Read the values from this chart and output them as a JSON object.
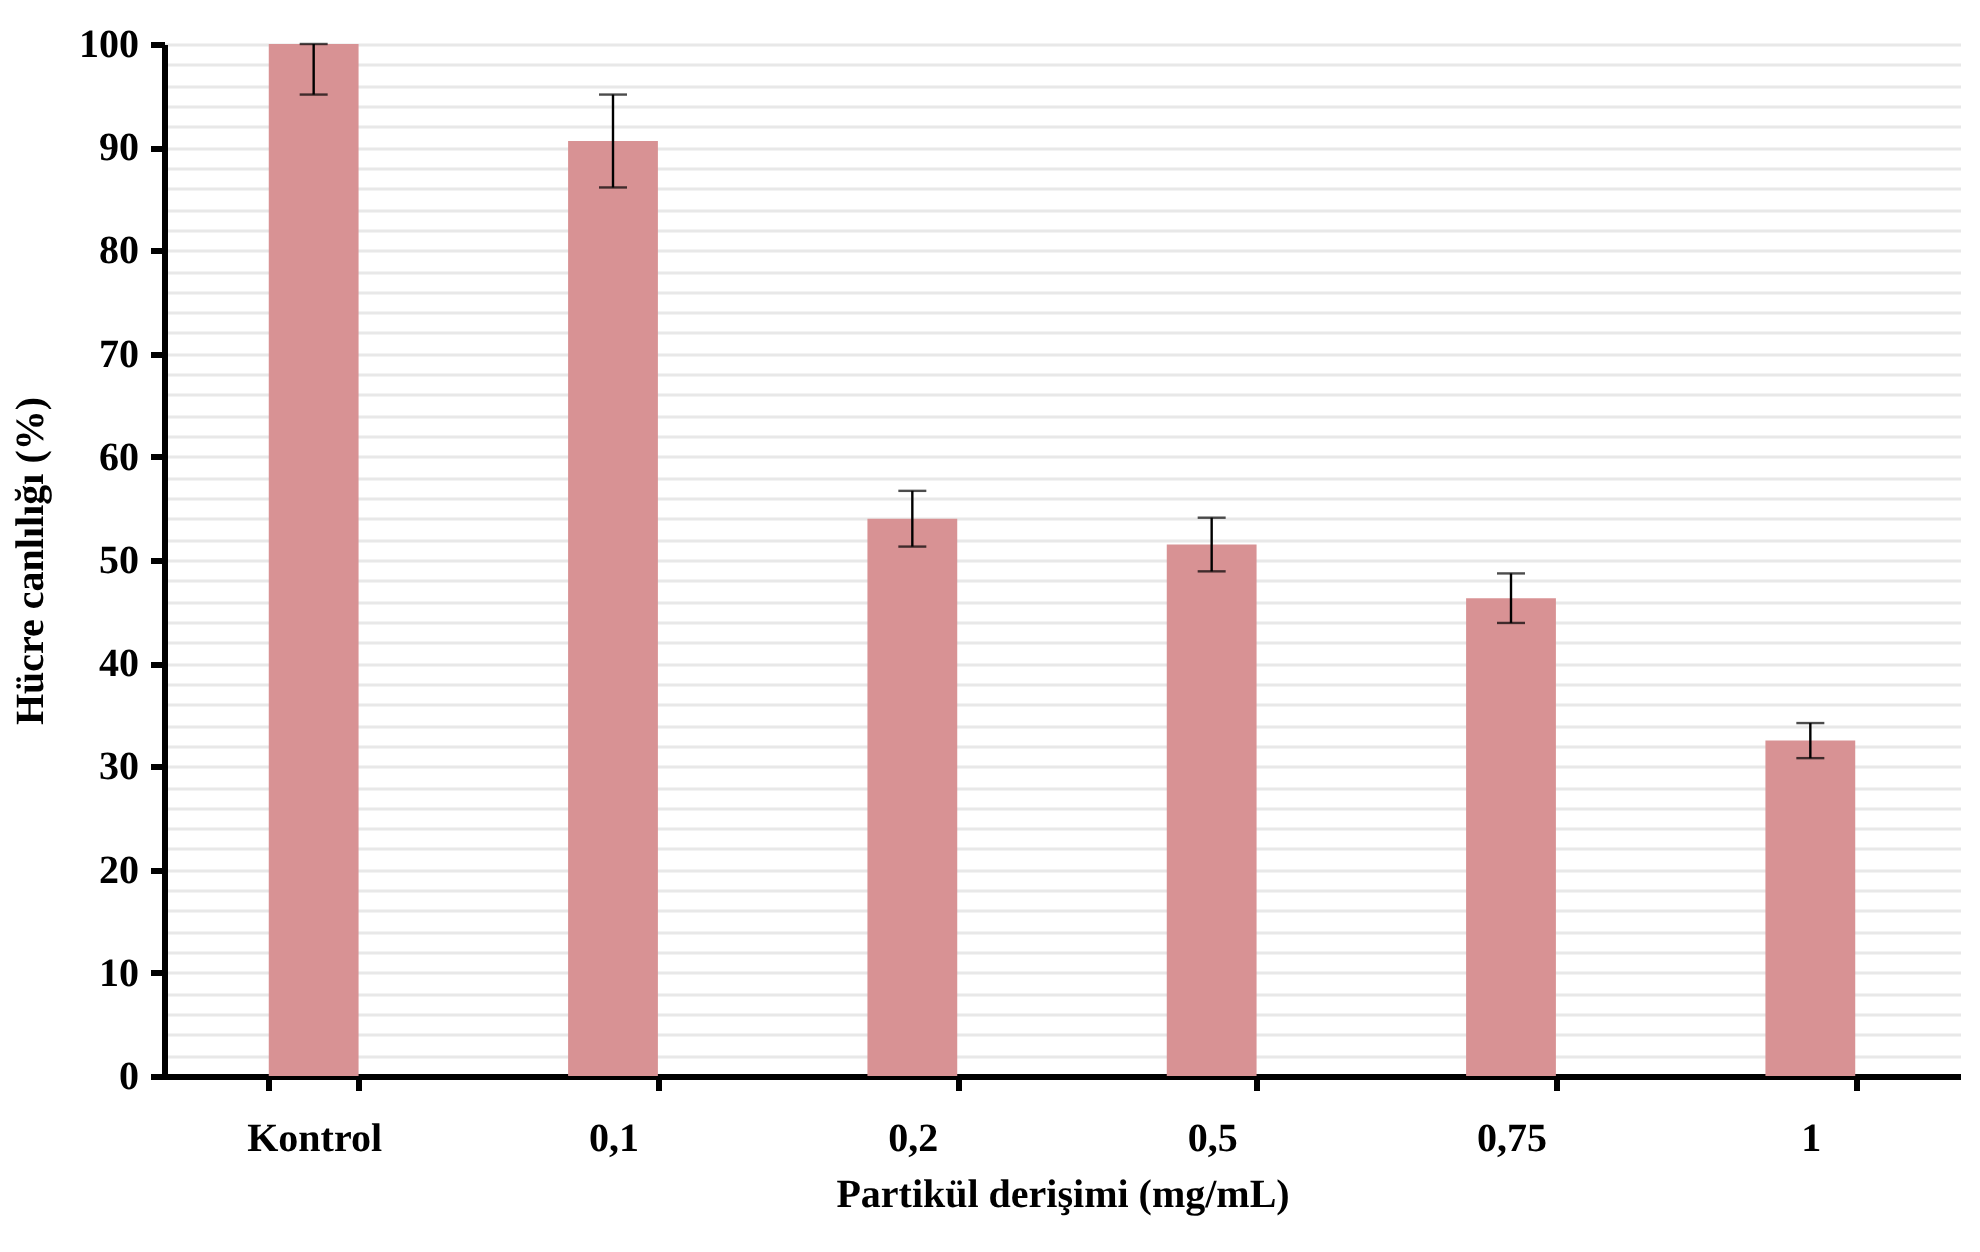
{
  "chart_data": {
    "type": "bar",
    "xlabel": "Partikül derişimi (mg/mL)",
    "ylabel": "Hücre canlılığı (%)",
    "categories": [
      "Kontrol",
      "0,1",
      "0,2",
      "0,5",
      "0,75",
      "1"
    ],
    "values": [
      100,
      90.6,
      54.0,
      51.5,
      46.3,
      32.5
    ],
    "errors": [
      [
        95.1,
        100
      ],
      4.5,
      2.7,
      2.6,
      2.4,
      1.7
    ],
    "color": "#d89294",
    "ylim": [
      0,
      100
    ],
    "yticks": [
      0,
      {
        "value": 2,
        "label": null
      },
      {
        "value": 4,
        "label": null
      },
      {
        "value": 6,
        "label": null
      },
      {
        "value": 8,
        "label": null
      },
      10,
      {
        "value": 12,
        "label": null
      },
      {
        "value": 14,
        "label": null
      },
      {
        "value": 16,
        "label": null
      },
      {
        "value": 18,
        "label": null
      },
      20,
      {
        "value": 22,
        "label": null
      },
      {
        "value": 24,
        "label": null
      },
      {
        "value": 26,
        "label": null
      },
      {
        "value": 28,
        "label": null
      },
      30,
      {
        "value": 32,
        "label": null
      },
      {
        "value": 34,
        "label": null
      },
      {
        "value": 36,
        "label": null
      },
      {
        "value": 38,
        "label": null
      },
      40,
      {
        "value": 42,
        "label": null
      },
      {
        "value": 44,
        "label": null
      },
      {
        "value": 46,
        "label": null
      },
      {
        "value": 48,
        "label": null
      },
      50,
      {
        "value": 52,
        "label": null
      },
      {
        "value": 54,
        "label": null
      },
      {
        "value": 56,
        "label": null
      },
      {
        "value": 58,
        "label": null
      },
      60,
      {
        "value": 62,
        "label": null
      },
      {
        "value": 64,
        "label": null
      },
      {
        "value": 66,
        "label": null
      },
      {
        "value": 68,
        "label": null
      },
      70,
      {
        "value": 72,
        "label": null
      },
      {
        "value": 74,
        "label": null
      },
      {
        "value": 76,
        "label": null
      },
      {
        "value": 78,
        "label": null
      },
      80,
      {
        "value": 82,
        "label": null
      },
      {
        "value": 84,
        "label": null
      },
      {
        "value": 86,
        "label": null
      },
      {
        "value": 88,
        "label": null
      },
      90,
      {
        "value": 92,
        "label": null
      },
      {
        "value": 94,
        "label": null
      },
      {
        "value": 96,
        "label": null
      },
      {
        "value": 98,
        "label": null
      },
      100
    ],
    "grid": "y"
  }
}
